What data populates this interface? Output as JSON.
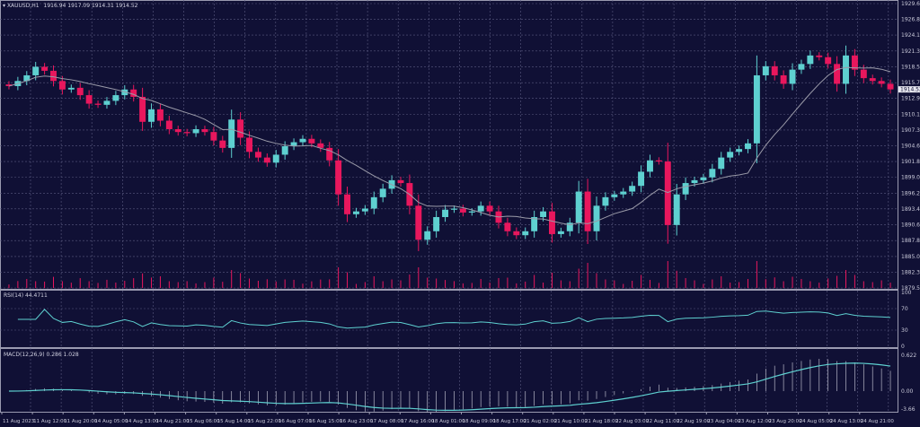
{
  "header": {
    "symbol": "XAUUSD,H1",
    "ohlc": "1916.94 1917.09 1914.31 1914.52"
  },
  "rsi": {
    "label": "RSI(14) 44.4711",
    "levels": [
      "100",
      "70",
      "30",
      "0"
    ]
  },
  "macd": {
    "label": "MACD(12,26,9) 0.286 1.028",
    "levels": [
      "0.622",
      "0.00",
      "-3.66"
    ]
  },
  "colors": {
    "background": "#101035",
    "up": "#5ed0d0",
    "down": "#e8175d",
    "ma": "#9a9aa8",
    "grid": "#5a5a80",
    "volume": "#e8175d"
  },
  "chart_data": {
    "type": "candlestick",
    "price_ticks": [
      "1929.65",
      "1926.85",
      "1924.10",
      "1921.30",
      "1918.50",
      "1915.70",
      "1912.95",
      "1910.15",
      "1907.35",
      "1904.60",
      "1901.80",
      "1899.00",
      "1896.20",
      "1893.45",
      "1890.65",
      "1887.85",
      "1885.05",
      "1882.30",
      "1879.50"
    ],
    "ylim": [
      1879.5,
      1929.65
    ],
    "current_price": "1914.52",
    "time_labels": [
      "11 Aug 2023",
      "11 Aug 12:00",
      "11 Aug 20:00",
      "14 Aug 05:00",
      "14 Aug 13:00",
      "14 Aug 21:00",
      "15 Aug 06:00",
      "15 Aug 14:00",
      "15 Aug 22:00",
      "16 Aug 07:00",
      "16 Aug 15:00",
      "16 Aug 23:00",
      "17 Aug 08:00",
      "17 Aug 16:00",
      "18 Aug 01:00",
      "18 Aug 09:00",
      "18 Aug 17:00",
      "21 Aug 02:00",
      "21 Aug 10:00",
      "21 Aug 18:00",
      "22 Aug 03:00",
      "22 Aug 11:00",
      "22 Aug 19:00",
      "23 Aug 04:00",
      "23 Aug 12:00",
      "23 Aug 20:00",
      "24 Aug 05:00",
      "24 Aug 13:00",
      "24 Aug 21:00"
    ],
    "closes": [
      1915.1,
      1916,
      1917,
      1918.5,
      1917.8,
      1916,
      1914.5,
      1914.8,
      1913.5,
      1912,
      1911.8,
      1912.5,
      1913.5,
      1914.5,
      1913.2,
      1908.8,
      1911,
      1909,
      1907.5,
      1907,
      1906.8,
      1907.5,
      1907,
      1905.5,
      1904.2,
      1909.2,
      1906,
      1903.5,
      1902.5,
      1901.6,
      1903,
      1904.5,
      1905.2,
      1905.8,
      1905,
      1904.2,
      1902,
      1896,
      1892.5,
      1893,
      1893.5,
      1895.5,
      1897,
      1898.5,
      1898,
      1894,
      1888,
      1889.5,
      1892,
      1893.3,
      1893.5,
      1892.8,
      1893,
      1894,
      1893,
      1891,
      1889.5,
      1888.8,
      1889.5,
      1892,
      1893,
      1889,
      1889.5,
      1891,
      1896.5,
      1889.5,
      1894,
      1895.5,
      1896,
      1896.5,
      1897.5,
      1900,
      1902,
      1901.8,
      1890.6,
      1896,
      1898,
      1898.5,
      1899,
      1900.5,
      1902.5,
      1903.5,
      1904,
      1905,
      1917,
      1918.6,
      1917,
      1915.5,
      1918,
      1919,
      1920.5,
      1920.2,
      1919,
      1915.5,
      1920.5,
      1918,
      1916.5,
      1916,
      1915.5,
      1914.52
    ]
  }
}
